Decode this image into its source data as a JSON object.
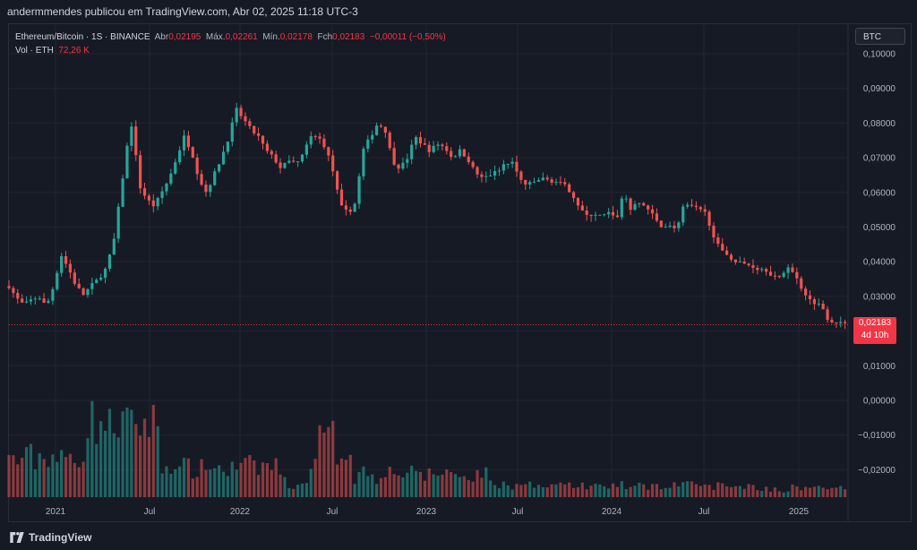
{
  "header": {
    "credit": "andermmendes publicou em TradingView.com, Abr 02, 2025 11:18 UTC-3"
  },
  "legend": {
    "symbol": "Ethereum/Bitcoin · 1S · BINANCE",
    "open_label": "Abr",
    "open_value": "0,02195",
    "high_label": "Máx.",
    "high_value": "0,02261",
    "low_label": "Mín.",
    "low_value": "0,02178",
    "close_label": "Fch",
    "close_value": "0,02183",
    "change": "−0,00011 (−0,50%)",
    "vol_label": "Vol · ETH",
    "vol_value": "72,26 K"
  },
  "currency_badge": "BTC",
  "last_price": {
    "value": "0,02183",
    "countdown": "4d 10h"
  },
  "footer": {
    "brand": "TradingView"
  },
  "colors": {
    "up": "#26a69a",
    "down": "#ef5350",
    "background": "#161a25",
    "grid": "#232632",
    "price_line": "#f23645"
  },
  "chart_data": {
    "type": "candlestick",
    "title": "Ethereum/Bitcoin · 1S · BINANCE",
    "y_ticks": [
      "0,10000",
      "0,09000",
      "0,08000",
      "0,07000",
      "0,06000",
      "0,05000",
      "0,04000",
      "0,03000",
      "0,02000",
      "0,01000",
      "0,00000",
      "−0,01000",
      "−0,02000"
    ],
    "x_ticks": [
      "2021",
      "Jul",
      "2022",
      "Jul",
      "2023",
      "Jul",
      "2024",
      "Jul",
      "2025"
    ],
    "ylim": [
      -0.0235,
      0.1
    ],
    "x_range": [
      "2020-11",
      "2025-04"
    ],
    "price_path": [
      [
        0,
        0.033
      ],
      [
        4,
        0.0295
      ],
      [
        8,
        0.0275
      ],
      [
        12,
        0.029
      ],
      [
        16,
        0.03
      ],
      [
        20,
        0.027
      ],
      [
        24,
        0.033
      ],
      [
        28,
        0.042
      ],
      [
        32,
        0.038
      ],
      [
        36,
        0.033
      ],
      [
        40,
        0.0305
      ],
      [
        44,
        0.033
      ],
      [
        48,
        0.035
      ],
      [
        52,
        0.038
      ],
      [
        56,
        0.045
      ],
      [
        60,
        0.06
      ],
      [
        63,
        0.072
      ],
      [
        66,
        0.08
      ],
      [
        70,
        0.062
      ],
      [
        74,
        0.058
      ],
      [
        78,
        0.056
      ],
      [
        82,
        0.06
      ],
      [
        86,
        0.064
      ],
      [
        90,
        0.07
      ],
      [
        94,
        0.076
      ],
      [
        98,
        0.072
      ],
      [
        102,
        0.064
      ],
      [
        106,
        0.06
      ],
      [
        110,
        0.065
      ],
      [
        114,
        0.07
      ],
      [
        118,
        0.076
      ],
      [
        122,
        0.084
      ],
      [
        126,
        0.081
      ],
      [
        130,
        0.078
      ],
      [
        134,
        0.076
      ],
      [
        138,
        0.072
      ],
      [
        142,
        0.07
      ],
      [
        146,
        0.067
      ],
      [
        150,
        0.069
      ],
      [
        154,
        0.068
      ],
      [
        158,
        0.071
      ],
      [
        162,
        0.076
      ],
      [
        166,
        0.076
      ],
      [
        170,
        0.073
      ],
      [
        174,
        0.066
      ],
      [
        178,
        0.056
      ],
      [
        182,
        0.054
      ],
      [
        186,
        0.057
      ],
      [
        190,
        0.072
      ],
      [
        194,
        0.076
      ],
      [
        198,
        0.08
      ],
      [
        202,
        0.078
      ],
      [
        206,
        0.069
      ],
      [
        210,
        0.067
      ],
      [
        214,
        0.07
      ],
      [
        218,
        0.076
      ],
      [
        222,
        0.074
      ],
      [
        226,
        0.072
      ],
      [
        230,
        0.074
      ],
      [
        234,
        0.073
      ],
      [
        238,
        0.07
      ],
      [
        242,
        0.072
      ],
      [
        246,
        0.07
      ],
      [
        250,
        0.066
      ],
      [
        254,
        0.064
      ],
      [
        258,
        0.065
      ],
      [
        262,
        0.066
      ],
      [
        266,
        0.068
      ],
      [
        270,
        0.069
      ],
      [
        274,
        0.064
      ],
      [
        278,
        0.062
      ],
      [
        282,
        0.063
      ],
      [
        286,
        0.064
      ],
      [
        290,
        0.0635
      ],
      [
        294,
        0.063
      ],
      [
        298,
        0.062
      ],
      [
        302,
        0.06
      ],
      [
        306,
        0.056
      ],
      [
        310,
        0.053
      ],
      [
        314,
        0.054
      ],
      [
        318,
        0.053
      ],
      [
        322,
        0.054
      ],
      [
        326,
        0.052
      ],
      [
        330,
        0.06
      ],
      [
        334,
        0.055
      ],
      [
        338,
        0.057
      ],
      [
        342,
        0.056
      ],
      [
        346,
        0.053
      ],
      [
        350,
        0.05
      ],
      [
        354,
        0.051
      ],
      [
        358,
        0.049
      ],
      [
        362,
        0.056
      ],
      [
        366,
        0.056
      ],
      [
        370,
        0.055
      ],
      [
        374,
        0.054
      ],
      [
        378,
        0.048
      ],
      [
        382,
        0.043
      ],
      [
        386,
        0.042
      ],
      [
        390,
        0.04
      ],
      [
        394,
        0.0395
      ],
      [
        398,
        0.039
      ],
      [
        402,
        0.038
      ],
      [
        406,
        0.038
      ],
      [
        410,
        0.036
      ],
      [
        414,
        0.035
      ],
      [
        418,
        0.039
      ],
      [
        422,
        0.036
      ],
      [
        426,
        0.032
      ],
      [
        430,
        0.029
      ],
      [
        434,
        0.028
      ],
      [
        438,
        0.026
      ],
      [
        440,
        0.023
      ],
      [
        444,
        0.0228
      ],
      [
        448,
        0.0219
      ],
      [
        450,
        0.0218
      ]
    ]
  }
}
